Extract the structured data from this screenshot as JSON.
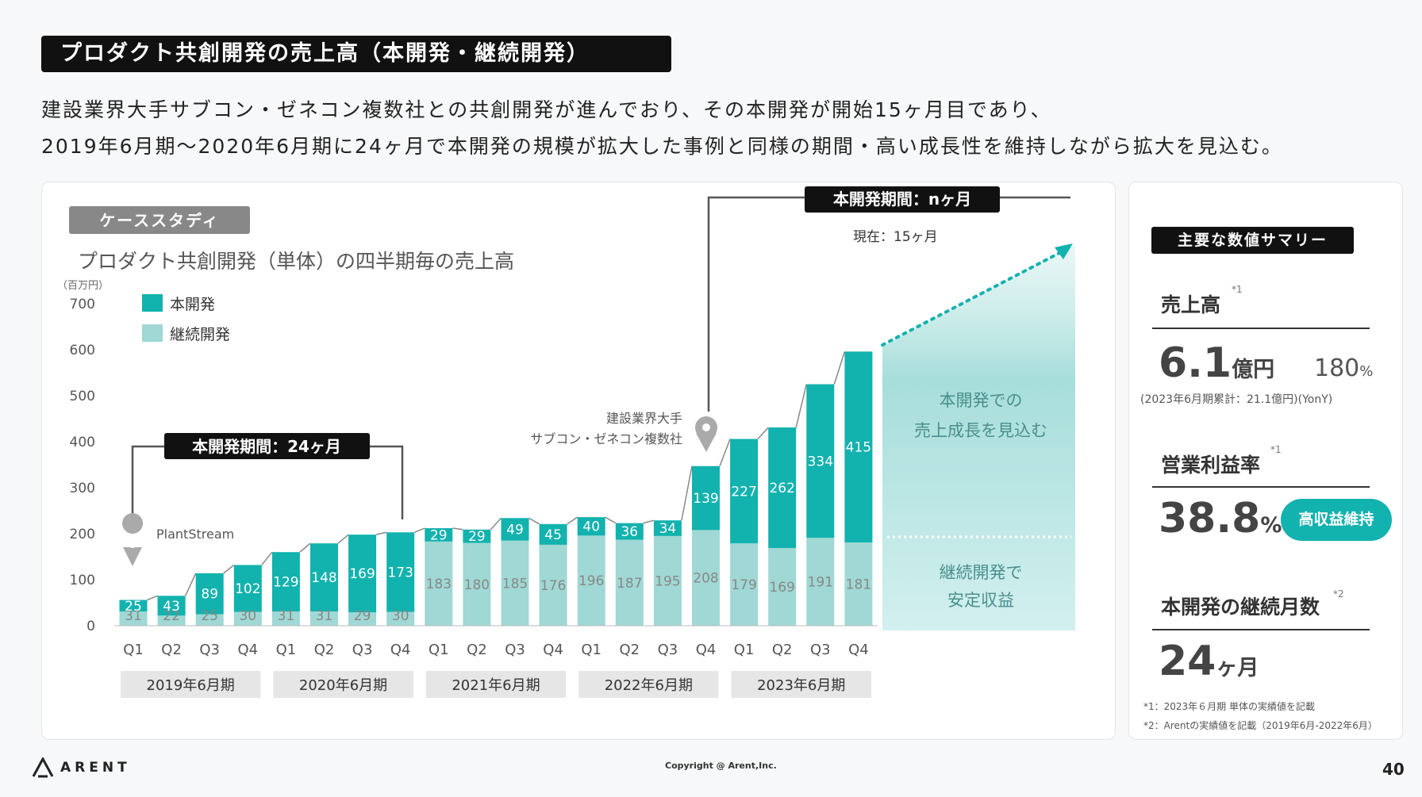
{
  "header": {
    "title": "プロダクト共創開発の売上高（本開発・継続開発）",
    "lead_line1": "建設業界大手サブコン・ゼネコン複数社との共創開発が進んでおり、その本開発が開始15ヶ月目であり、",
    "lead_line2": "2019年6月期～2020年6月期に24ヶ月で本開発の規模が拡大した事例と同様の期間・高い成長性を維持しながら拡大を見込む。"
  },
  "case_study": {
    "tag": "ケーススタディ",
    "chart_title": "プロダクト共創開発（単体）の四半期毎の売上高",
    "unit": "（百万円）",
    "legend": [
      "本開発",
      "継続開発"
    ],
    "period1_label": "本開発期間：24ヶ月",
    "period1_pin": "PlantStream",
    "period2_label": "本開発期間：nヶ月",
    "period2_current": "現在：15ヶ月",
    "period2_pin_line1": "建設業界大手",
    "period2_pin_line2": "サブコン・ゼネコン複数社",
    "projection_upper_line1": "本開発での",
    "projection_upper_line2": "売上成長を見込む",
    "projection_lower_line1": "継続開発で",
    "projection_lower_line2": "安定収益"
  },
  "chart_data": {
    "type": "bar",
    "stacked": true,
    "categories": [
      "Q1",
      "Q2",
      "Q3",
      "Q4",
      "Q1",
      "Q2",
      "Q3",
      "Q4",
      "Q1",
      "Q2",
      "Q3",
      "Q4",
      "Q1",
      "Q2",
      "Q3",
      "Q4",
      "Q1",
      "Q2",
      "Q3",
      "Q4"
    ],
    "fiscal_years": [
      "2019年6月期",
      "2020年6月期",
      "2021年6月期",
      "2022年6月期",
      "2023年6月期"
    ],
    "series": [
      {
        "name": "継続開発",
        "color": "#9fd8d4",
        "values": [
          31,
          22,
          25,
          30,
          31,
          31,
          29,
          30,
          183,
          180,
          185,
          176,
          196,
          187,
          195,
          208,
          179,
          169,
          191,
          181
        ]
      },
      {
        "name": "本開発",
        "color": "#12b2ae",
        "values": [
          25,
          43,
          89,
          102,
          129,
          148,
          169,
          173,
          29,
          29,
          49,
          45,
          40,
          36,
          34,
          139,
          227,
          262,
          334,
          415
        ]
      }
    ],
    "yticks": [
      0,
      100,
      200,
      300,
      400,
      500,
      600,
      700
    ],
    "ylim": [
      0,
      700
    ],
    "title": "プロダクト共創開発（単体）の四半期毎の売上高",
    "ylabel": "（百万円）",
    "xlabel": ""
  },
  "summary": {
    "tag": "主要な数値サマリー",
    "sales_label": "売上高",
    "sales_note": "*1",
    "sales_value": "6.1",
    "sales_unit": "億円",
    "sales_growth": "180",
    "sales_growth_unit": "%",
    "sales_sub": "(2023年6月期累計：21.1億円)(YonY)",
    "op_label": "営業利益率",
    "op_note": "*1",
    "op_value": "38.8",
    "op_unit": "%",
    "op_badge": "高収益維持",
    "months_label": "本開発の継続月数",
    "months_note": "*2",
    "months_value": "24",
    "months_unit": "ヶ月",
    "footnote1": "*1：2023年６月期 単体の実績値を記載",
    "footnote2": "*2：Arentの実績値を記載（2019年6月-2022年6月）"
  },
  "footer": {
    "logo": "ARENT",
    "copyright": "Copyright @ Arent,Inc.",
    "page": "40"
  },
  "colors": {
    "accent": "#12b2ae",
    "accent_light": "#9fd8d4",
    "dark": "#111111"
  }
}
